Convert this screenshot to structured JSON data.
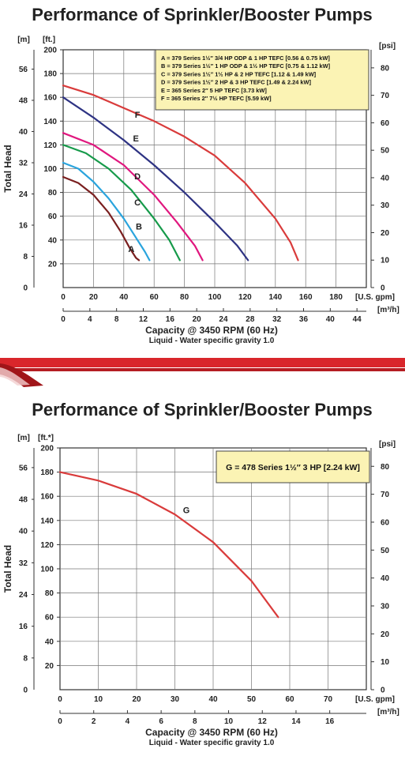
{
  "chart_data": [
    {
      "type": "line",
      "title": "Performance of Sprinkler/Booster Pumps",
      "xlabel": "Capacity @ 3450 RPM (60 Hz)",
      "xlabel_sub": "Liquid - Water specific gravity 1.0",
      "ylabel": "Total Head",
      "y_units": {
        "left_m": "[m]",
        "left_ft": "[ft.]",
        "right_psi": "[psi]"
      },
      "x_units": {
        "gpm": "[U.S. gpm]",
        "m3h": "[m³/h]"
      },
      "xlim": [
        0,
        200
      ],
      "ylim": [
        0,
        200
      ],
      "x_ticks_gpm": [
        "0",
        "20",
        "40",
        "60",
        "80",
        "100",
        "120",
        "140",
        "160",
        "180"
      ],
      "x_ticks_m3h": [
        "0",
        "4",
        "8",
        "12",
        "16",
        "20",
        "24",
        "28",
        "32",
        "36",
        "40",
        "44"
      ],
      "y_ticks_ft": [
        "20",
        "40",
        "60",
        "80",
        "100",
        "120",
        "140",
        "160",
        "180",
        "200"
      ],
      "y_ticks_m": [
        "8",
        "16",
        "24",
        "32",
        "40",
        "48",
        "56"
      ],
      "y_ticks_psi": [
        "0",
        "10",
        "20",
        "30",
        "40",
        "50",
        "60",
        "70",
        "80"
      ],
      "y_zero_left": "0",
      "legend_placement": "top-right",
      "legend": [
        "A = 379 Series 1½″ 3/4 HP ODP & 1 HP TEFC [0.56 & 0.75 kW]",
        "B = 379 Series 1½″ 1 HP ODP & 1½ HP TEFC [0.75 & 1.12 kW]",
        "C = 379 Series 1½″ 1½ HP & 2 HP TEFC [1.12 & 1.49 kW]",
        "D = 379 Series 1½″ 2 HP & 3 HP TEFC [1.49 & 2.24 kW]",
        "E = 365 Series 2″ 5 HP TEFC [3.73 kW]",
        "F = 365 Series 2″ 7½ HP TEFC [5.59 kW]"
      ],
      "grid": true,
      "series": [
        {
          "name": "A",
          "color": "#7a1f1f",
          "x": [
            0,
            10,
            20,
            30,
            38,
            44,
            48,
            50
          ],
          "y": [
            93,
            88,
            78,
            63,
            47,
            33,
            25,
            23
          ]
        },
        {
          "name": "B",
          "color": "#2aa4dd",
          "x": [
            0,
            10,
            20,
            30,
            40,
            48,
            54,
            57
          ],
          "y": [
            105,
            100,
            89,
            75,
            58,
            42,
            30,
            23
          ]
        },
        {
          "name": "C",
          "color": "#169a4a",
          "x": [
            0,
            15,
            30,
            45,
            60,
            70,
            77
          ],
          "y": [
            120,
            113,
            100,
            82,
            58,
            40,
            23
          ]
        },
        {
          "name": "D",
          "color": "#e0177e",
          "x": [
            0,
            20,
            40,
            60,
            75,
            87,
            92
          ],
          "y": [
            130,
            120,
            103,
            78,
            55,
            35,
            23
          ]
        },
        {
          "name": "E",
          "color": "#2e3383",
          "x": [
            0,
            20,
            40,
            60,
            80,
            100,
            115,
            122
          ],
          "y": [
            160,
            143,
            124,
            103,
            80,
            55,
            35,
            23
          ]
        },
        {
          "name": "F",
          "color": "#d93b3b",
          "x": [
            0,
            20,
            40,
            60,
            80,
            100,
            120,
            140,
            150,
            155
          ],
          "y": [
            170,
            162,
            151,
            140,
            127,
            111,
            88,
            58,
            38,
            23
          ]
        }
      ],
      "curve_labels": [
        {
          "text": "A",
          "x": 45,
          "y": 30
        },
        {
          "text": "B",
          "x": 50,
          "y": 49
        },
        {
          "text": "C",
          "x": 49,
          "y": 69
        },
        {
          "text": "D",
          "x": 49,
          "y": 91
        },
        {
          "text": "E",
          "x": 48,
          "y": 123
        },
        {
          "text": "F",
          "x": 49,
          "y": 143
        }
      ]
    },
    {
      "type": "line",
      "title": "Performance of Sprinkler/Booster Pumps",
      "xlabel": "Capacity @ 3450 RPM (60 Hz)",
      "xlabel_sub": "Liquid - Water specific gravity 1.0",
      "ylabel": "Total Head",
      "y_units": {
        "left_m": "[m]",
        "left_ft": "[ft.*]",
        "right_psi": "[psi]"
      },
      "x_units": {
        "gpm": "[U.S. gpm]",
        "m3h": "[m³/h]"
      },
      "xlim": [
        0,
        80
      ],
      "ylim": [
        0,
        200
      ],
      "x_ticks_gpm": [
        "0",
        "10",
        "20",
        "30",
        "40",
        "50",
        "60",
        "70"
      ],
      "x_ticks_m3h": [
        "0",
        "2",
        "4",
        "6",
        "8",
        "10",
        "12",
        "14",
        "16"
      ],
      "y_ticks_ft": [
        "20",
        "40",
        "60",
        "80",
        "100",
        "120",
        "140",
        "160",
        "180",
        "200"
      ],
      "y_ticks_m": [
        "8",
        "16",
        "24",
        "32",
        "40",
        "48",
        "56"
      ],
      "y_ticks_psi": [
        "0",
        "10",
        "20",
        "30",
        "40",
        "50",
        "60",
        "70",
        "80"
      ],
      "y_zero_left": "0",
      "legend_placement": "top-right",
      "legend": [
        "G = 478 Series 1½″ 3 HP [2.24 kW]"
      ],
      "grid": true,
      "series": [
        {
          "name": "G",
          "color": "#d93b3b",
          "x": [
            0,
            10,
            20,
            30,
            40,
            50,
            57
          ],
          "y": [
            180,
            173,
            162,
            145,
            122,
            90,
            60
          ]
        }
      ],
      "curve_labels": [
        {
          "text": "G",
          "x": 33,
          "y": 146
        }
      ]
    }
  ]
}
